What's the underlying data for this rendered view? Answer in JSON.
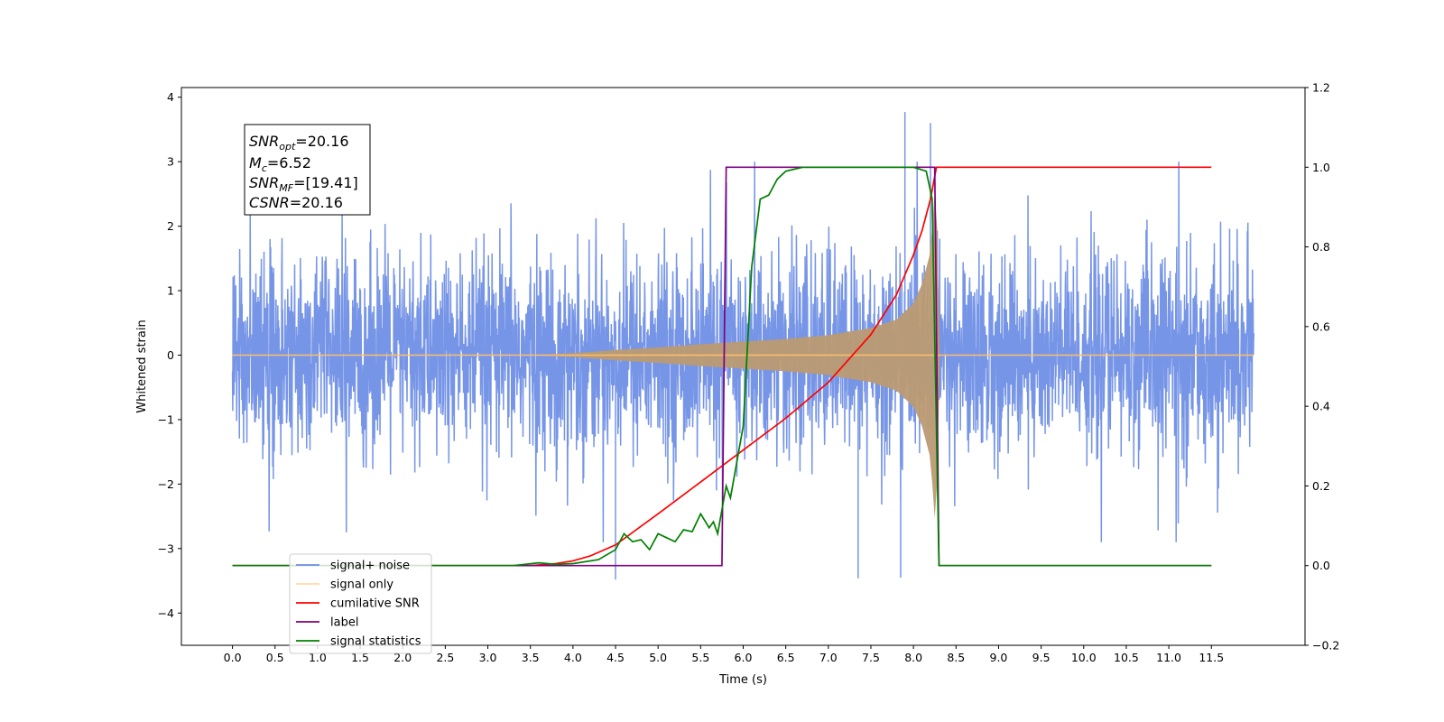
{
  "chart_data": {
    "type": "line",
    "title": "",
    "xlabel": "Time (s)",
    "ylabel": "Whitened strain",
    "ylabel_right": "",
    "xlim": [
      -0.6,
      12.6
    ],
    "ylim": [
      -4.5,
      4.15
    ],
    "ylim_right": [
      -0.2,
      1.2
    ],
    "x_ticks": [
      "0.0",
      "0.5",
      "1.0",
      "1.5",
      "2.0",
      "2.5",
      "3.0",
      "3.5",
      "4.0",
      "4.5",
      "5.0",
      "5.5",
      "6.0",
      "6.5",
      "7.0",
      "7.5",
      "8.0",
      "8.5",
      "9.0",
      "9.5",
      "10.0",
      "10.5",
      "11.0",
      "11.5"
    ],
    "y_ticks": [
      "4",
      "3",
      "2",
      "1",
      "0",
      "−1",
      "−2",
      "−3",
      "−4"
    ],
    "y_ticks_right": [
      "1.2",
      "1.0",
      "0.8",
      "0.6",
      "0.4",
      "0.2",
      "0.0",
      "−0.2"
    ],
    "grid": false,
    "legend_position": "lower-left",
    "annotation": {
      "snr_opt": "=20.16",
      "mc": "=6.52",
      "snr_mf": "=[19.41]",
      "csnr": "=20.16"
    },
    "series": [
      {
        "name": "signal+ noise",
        "axis": "left",
        "color": "#6f8fe6",
        "description_values": "gaussian noise around 0 with spikes up to 3.8 / down to -3.5, x from 0 to 12",
        "x_range": [
          0,
          12
        ],
        "peaks": [
          [
            7.9,
            3.77
          ],
          [
            8.2,
            3.6
          ],
          [
            4.5,
            -3.48
          ],
          [
            7.35,
            -3.46
          ],
          [
            7.85,
            -3.45
          ]
        ]
      },
      {
        "name": "signal only",
        "axis": "left",
        "color": "#ffbf69",
        "x": [
          0,
          3.5,
          4.0,
          4.5,
          5.0,
          5.5,
          6.0,
          6.5,
          7.0,
          7.5,
          7.8,
          8.0,
          8.1,
          8.2,
          8.27,
          8.3,
          12.0
        ],
        "envelope": [
          0,
          0,
          0.03,
          0.08,
          0.12,
          0.17,
          0.21,
          0.25,
          0.31,
          0.42,
          0.55,
          0.8,
          1.1,
          1.6,
          2.9,
          0,
          0
        ]
      },
      {
        "name": "cumilative SNR",
        "axis": "right",
        "color": "#ff0000",
        "x": [
          0,
          3.5,
          3.8,
          4.0,
          4.2,
          4.5,
          5.0,
          5.5,
          6.0,
          6.5,
          7.0,
          7.5,
          7.8,
          8.0,
          8.1,
          8.2,
          8.27,
          8.3,
          11.5
        ],
        "y": [
          0,
          0,
          0.005,
          0.012,
          0.024,
          0.052,
          0.13,
          0.21,
          0.29,
          0.37,
          0.46,
          0.58,
          0.68,
          0.78,
          0.84,
          0.92,
          1.0,
          1.0,
          1.0
        ]
      },
      {
        "name": "label",
        "axis": "right",
        "color": "#800080",
        "x": [
          0,
          5.75,
          5.8,
          8.25,
          8.3,
          11.5
        ],
        "y": [
          0,
          0,
          1.0,
          1.0,
          0,
          0
        ]
      },
      {
        "name": "signal statistics",
        "axis": "right",
        "color": "#008000",
        "x": [
          0,
          3.3,
          3.6,
          3.8,
          4.0,
          4.3,
          4.5,
          4.6,
          4.7,
          4.8,
          4.9,
          5.0,
          5.1,
          5.2,
          5.3,
          5.4,
          5.5,
          5.6,
          5.65,
          5.7,
          5.8,
          5.85,
          5.9,
          6.0,
          6.1,
          6.2,
          6.3,
          6.4,
          6.5,
          6.7,
          7.0,
          8.0,
          8.15,
          8.22,
          8.3,
          8.4,
          11.5
        ],
        "y": [
          0,
          0,
          0.007,
          0.003,
          0.005,
          0.015,
          0.04,
          0.08,
          0.06,
          0.065,
          0.04,
          0.08,
          0.07,
          0.06,
          0.09,
          0.085,
          0.13,
          0.095,
          0.11,
          0.08,
          0.2,
          0.17,
          0.23,
          0.35,
          0.75,
          0.92,
          0.93,
          0.97,
          0.99,
          1.0,
          1.0,
          1.0,
          0.99,
          0.92,
          0.0,
          0.0,
          0.0
        ]
      }
    ]
  }
}
